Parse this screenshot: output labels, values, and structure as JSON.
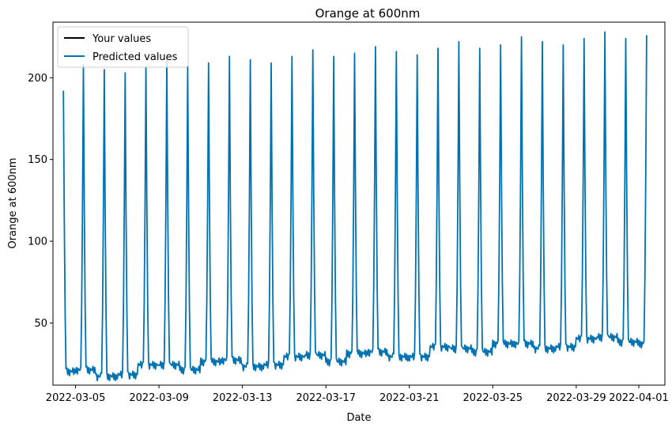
{
  "chart_data": {
    "type": "line",
    "title": "Orange at 600nm",
    "xlabel": "Date",
    "ylabel": "Orange at 600nm",
    "x_ticks": [
      "2022-03-05",
      "2022-03-09",
      "2022-03-13",
      "2022-03-17",
      "2022-03-21",
      "2022-03-25",
      "2022-03-29",
      "2022-04-01"
    ],
    "y_ticks": [
      50,
      100,
      150,
      200
    ],
    "ylim": [
      12,
      234
    ],
    "xlim": [
      "2022-03-03T22:00",
      "2022-04-02T06:00"
    ],
    "grid": false,
    "legend_position": "top-left",
    "series": [
      {
        "name": "Your values",
        "color": "#000000",
        "points": []
      },
      {
        "name": "Predicted values",
        "color": "#0072B2",
        "sampling": "hourly",
        "first_point_date": "2022-03-04T10:00",
        "daily_peak_hour": 9,
        "peaks": [
          {
            "date": "2022-03-04T10:00",
            "value": 192
          },
          {
            "date": "2022-03-05T09:00",
            "value": 208
          },
          {
            "date": "2022-03-06T09:00",
            "value": 205
          },
          {
            "date": "2022-03-07T09:00",
            "value": 203
          },
          {
            "date": "2022-03-08T09:00",
            "value": 207
          },
          {
            "date": "2022-03-09T09:00",
            "value": 212
          },
          {
            "date": "2022-03-10T09:00",
            "value": 207
          },
          {
            "date": "2022-03-11T09:00",
            "value": 209
          },
          {
            "date": "2022-03-12T09:00",
            "value": 213
          },
          {
            "date": "2022-03-13T09:00",
            "value": 211
          },
          {
            "date": "2022-03-14T09:00",
            "value": 209
          },
          {
            "date": "2022-03-15T09:00",
            "value": 213
          },
          {
            "date": "2022-03-16T09:00",
            "value": 217
          },
          {
            "date": "2022-03-17T09:00",
            "value": 213
          },
          {
            "date": "2022-03-18T09:00",
            "value": 215
          },
          {
            "date": "2022-03-19T09:00",
            "value": 219
          },
          {
            "date": "2022-03-20T09:00",
            "value": 216
          },
          {
            "date": "2022-03-21T09:00",
            "value": 214
          },
          {
            "date": "2022-03-22T09:00",
            "value": 218
          },
          {
            "date": "2022-03-23T09:00",
            "value": 222
          },
          {
            "date": "2022-03-24T09:00",
            "value": 218
          },
          {
            "date": "2022-03-25T09:00",
            "value": 220
          },
          {
            "date": "2022-03-26T09:00",
            "value": 225
          },
          {
            "date": "2022-03-27T09:00",
            "value": 222
          },
          {
            "date": "2022-03-28T09:00",
            "value": 220
          },
          {
            "date": "2022-03-29T09:00",
            "value": 224
          },
          {
            "date": "2022-03-30T09:00",
            "value": 228
          },
          {
            "date": "2022-03-31T09:00",
            "value": 224
          },
          {
            "date": "2022-04-01T09:00",
            "value": 226
          }
        ],
        "daily_baseline": [
          {
            "date": "2022-03-04",
            "value": 20
          },
          {
            "date": "2022-03-05",
            "value": 21
          },
          {
            "date": "2022-03-06",
            "value": 17
          },
          {
            "date": "2022-03-07",
            "value": 18
          },
          {
            "date": "2022-03-08",
            "value": 24
          },
          {
            "date": "2022-03-09",
            "value": 24
          },
          {
            "date": "2022-03-10",
            "value": 21
          },
          {
            "date": "2022-03-11",
            "value": 26
          },
          {
            "date": "2022-03-12",
            "value": 27
          },
          {
            "date": "2022-03-13",
            "value": 23
          },
          {
            "date": "2022-03-14",
            "value": 24
          },
          {
            "date": "2022-03-15",
            "value": 29
          },
          {
            "date": "2022-03-16",
            "value": 30
          },
          {
            "date": "2022-03-17",
            "value": 26
          },
          {
            "date": "2022-03-18",
            "value": 31
          },
          {
            "date": "2022-03-19",
            "value": 32
          },
          {
            "date": "2022-03-20",
            "value": 29
          },
          {
            "date": "2022-03-21",
            "value": 29
          },
          {
            "date": "2022-03-22",
            "value": 35
          },
          {
            "date": "2022-03-23",
            "value": 34
          },
          {
            "date": "2022-03-24",
            "value": 32
          },
          {
            "date": "2022-03-25",
            "value": 37
          },
          {
            "date": "2022-03-26",
            "value": 37
          },
          {
            "date": "2022-03-27",
            "value": 34
          },
          {
            "date": "2022-03-28",
            "value": 35
          },
          {
            "date": "2022-03-29",
            "value": 40
          },
          {
            "date": "2022-03-30",
            "value": 41
          },
          {
            "date": "2022-03-31",
            "value": 38
          },
          {
            "date": "2022-04-01",
            "value": 37
          }
        ]
      }
    ]
  }
}
